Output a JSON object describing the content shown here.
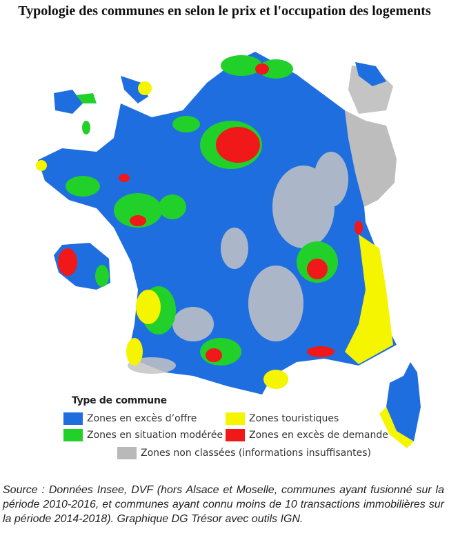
{
  "title": "Typologie des communes en selon le prix et l'occupation des logements",
  "legend": {
    "title": "Type de commune",
    "items": [
      {
        "label": "Zones en excès d’offre",
        "color": "#1f6ee0"
      },
      {
        "label": "Zones touristiques",
        "color": "#f5f500"
      },
      {
        "label": "Zones en situation modérée",
        "color": "#22d02a"
      },
      {
        "label": "Zones en excès de demande",
        "color": "#f01818"
      },
      {
        "label": "Zones non classées (informations insuffisantes)",
        "color": "#b9b9b9"
      }
    ]
  },
  "source": "Source : Données Insee, DVF (hors Alsace et Moselle, communes ayant fusionné sur la période 2010-2016, et communes ayant connu moins de 10 transactions immobilières sur la période 2014-2018). Graphique DG Trésor avec outils IGN."
}
